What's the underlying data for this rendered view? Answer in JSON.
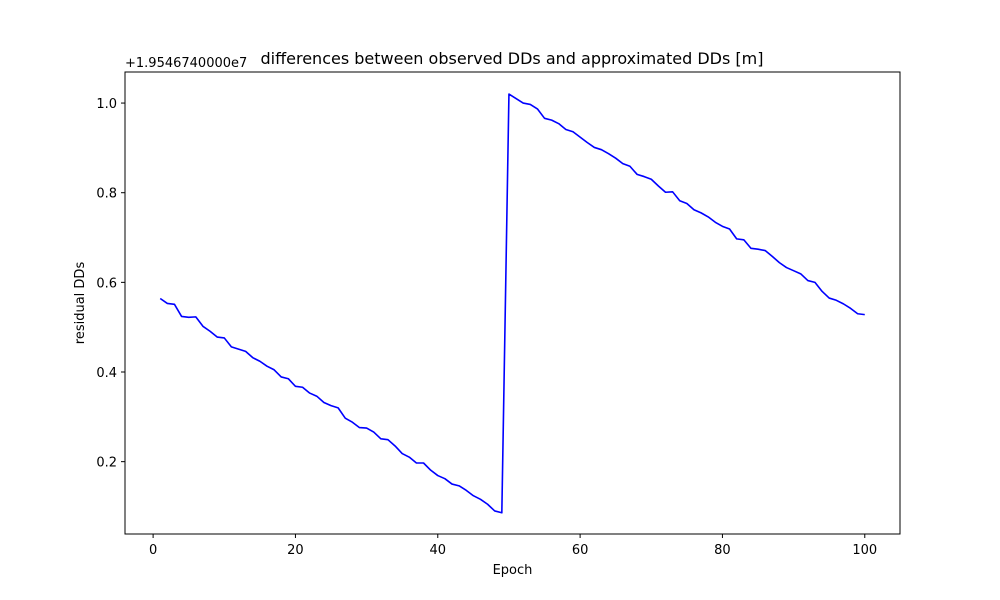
{
  "chart_data": {
    "type": "line",
    "title": "differences between observed DDs and approximated DDs [m]",
    "xlabel": "Epoch",
    "ylabel": "residual DDs",
    "y_offset_label": "+1.9546740000e7",
    "xlim": [
      -3.95,
      104.95
    ],
    "ylim": [
      0.0386,
      1.0693
    ],
    "xticks": [
      0,
      20,
      40,
      60,
      80,
      100
    ],
    "yticks": [
      0.2,
      0.4,
      0.6,
      0.8,
      1.0
    ],
    "ytick_labels": [
      "0.2",
      "0.4",
      "0.6",
      "0.8",
      "1.0"
    ],
    "grid": false,
    "series": [
      {
        "color": "#0000ff",
        "x": [
          1,
          2,
          3,
          4,
          5,
          6,
          7,
          8,
          9,
          10,
          11,
          12,
          13,
          14,
          15,
          16,
          17,
          18,
          19,
          20,
          21,
          22,
          23,
          24,
          25,
          26,
          27,
          28,
          29,
          30,
          31,
          32,
          33,
          34,
          35,
          36,
          37,
          38,
          39,
          40,
          41,
          42,
          43,
          44,
          45,
          46,
          47,
          48,
          49,
          50,
          51,
          52,
          53,
          54,
          55,
          56,
          57,
          58,
          59,
          60,
          61,
          62,
          63,
          64,
          65,
          66,
          67,
          68,
          69,
          70,
          71,
          72,
          73,
          74,
          75,
          76,
          77,
          78,
          79,
          80,
          81,
          82,
          83,
          84,
          85,
          86,
          87,
          88,
          89,
          90,
          91,
          92,
          93,
          94,
          95,
          96,
          97,
          98,
          99,
          100
        ],
        "values": [
          0.564,
          0.553,
          0.551,
          0.524,
          0.522,
          0.523,
          0.502,
          0.491,
          0.478,
          0.476,
          0.456,
          0.451,
          0.446,
          0.432,
          0.424,
          0.413,
          0.405,
          0.389,
          0.385,
          0.368,
          0.366,
          0.353,
          0.346,
          0.332,
          0.325,
          0.32,
          0.297,
          0.288,
          0.276,
          0.275,
          0.266,
          0.251,
          0.249,
          0.235,
          0.218,
          0.21,
          0.197,
          0.197,
          0.181,
          0.169,
          0.162,
          0.15,
          0.146,
          0.136,
          0.124,
          0.116,
          0.105,
          0.09,
          0.086,
          1.02,
          1.01,
          1.0,
          0.997,
          0.987,
          0.966,
          0.962,
          0.954,
          0.941,
          0.936,
          0.924,
          0.912,
          0.901,
          0.896,
          0.887,
          0.877,
          0.865,
          0.859,
          0.841,
          0.836,
          0.83,
          0.815,
          0.801,
          0.802,
          0.782,
          0.776,
          0.762,
          0.755,
          0.746,
          0.734,
          0.725,
          0.719,
          0.697,
          0.695,
          0.676,
          0.674,
          0.671,
          0.658,
          0.644,
          0.633,
          0.626,
          0.619,
          0.604,
          0.6,
          0.58,
          0.565,
          0.56,
          0.552,
          0.542,
          0.53,
          0.528
        ]
      }
    ]
  }
}
